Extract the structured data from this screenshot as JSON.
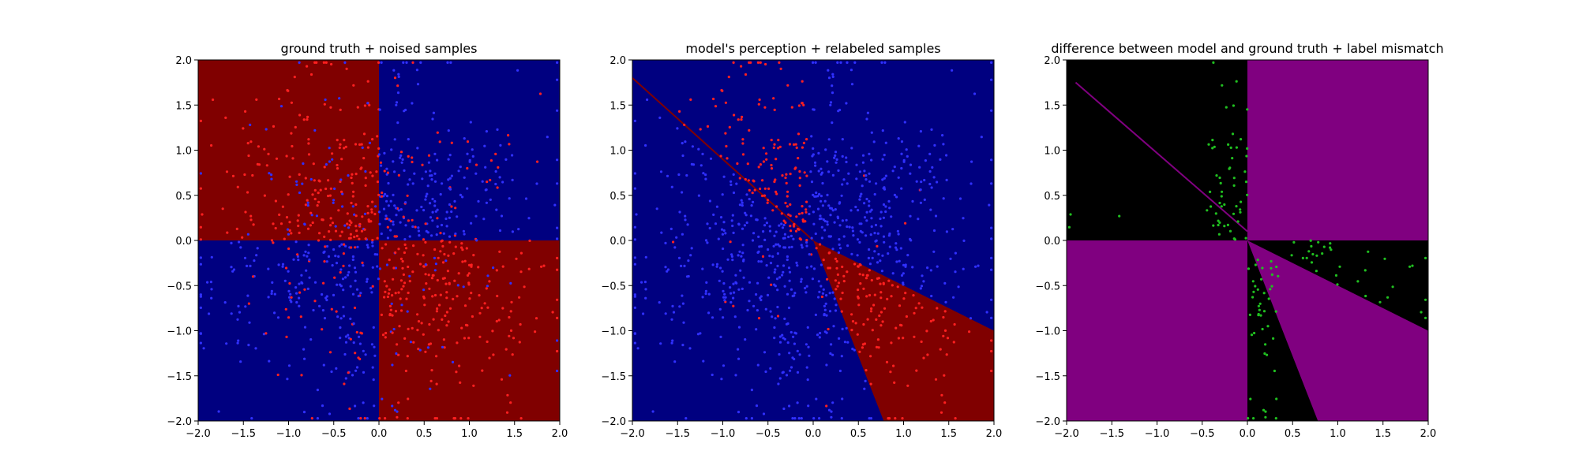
{
  "chart_data": [
    {
      "type": "heatmap",
      "title": "ground truth + noised samples",
      "xlim": [
        -2.0,
        2.0
      ],
      "ylim": [
        -2.0,
        2.0
      ],
      "xticks": [
        "−2.0",
        "−1.5",
        "−1.0",
        "−0.5",
        "0.0",
        "0.5",
        "1.0",
        "1.5",
        "2.0"
      ],
      "yticks": [
        "−2.0",
        "−1.5",
        "−1.0",
        "−0.5",
        "0.0",
        "0.5",
        "1.0",
        "1.5",
        "2.0"
      ],
      "background": "#000080",
      "regions": [
        {
          "color": "#800000",
          "polygon": [
            [
              -2,
              0
            ],
            [
              0,
              0
            ],
            [
              0,
              2
            ],
            [
              -2,
              2
            ]
          ]
        },
        {
          "color": "#800000",
          "polygon": [
            [
              0,
              -2
            ],
            [
              2,
              -2
            ],
            [
              2,
              0
            ],
            [
              0,
              0
            ]
          ]
        }
      ],
      "points": {
        "count": 1000,
        "rule": "checkerboard_noised",
        "colors": {
          "red": "#ff2020",
          "blue": "#3030ff"
        }
      }
    },
    {
      "type": "heatmap",
      "title": "model's perception + relabeled samples",
      "xlim": [
        -2.0,
        2.0
      ],
      "ylim": [
        -2.0,
        2.0
      ],
      "xticks": [
        "−2.0",
        "−1.5",
        "−1.0",
        "−0.5",
        "0.0",
        "0.5",
        "1.0",
        "1.5",
        "2.0"
      ],
      "yticks": [
        "−2.0",
        "−1.5",
        "−1.0",
        "−0.5",
        "0.0",
        "0.5",
        "1.0",
        "1.5",
        "2.0"
      ],
      "background": "#000080",
      "regions": [
        {
          "color": "#800000",
          "polygon": [
            [
              0,
              0
            ],
            [
              2,
              -1
            ],
            [
              2,
              -2
            ],
            [
              0.78,
              -2
            ]
          ]
        }
      ],
      "lines": [
        {
          "color": "#800000",
          "from": [
            -2,
            1.8
          ],
          "to": [
            0,
            0
          ]
        }
      ],
      "points": {
        "count": 1000,
        "rule": "model_relabeled",
        "colors": {
          "red": "#ff2020",
          "blue": "#3030ff"
        }
      }
    },
    {
      "type": "heatmap",
      "title": "difference between model and ground truth + label mismatch",
      "xlim": [
        -2.0,
        2.0
      ],
      "ylim": [
        -2.0,
        2.0
      ],
      "xticks": [
        "−2.0",
        "−1.5",
        "−1.0",
        "−0.5",
        "0.0",
        "0.5",
        "1.0",
        "1.5",
        "2.0"
      ],
      "yticks": [
        "−2.0",
        "−1.5",
        "−1.0",
        "−0.5",
        "0.0",
        "0.5",
        "1.0",
        "1.5",
        "2.0"
      ],
      "background": "#000000",
      "regions": [
        {
          "color": "#800080",
          "polygon": [
            [
              0,
              0
            ],
            [
              2,
              0
            ],
            [
              2,
              2
            ],
            [
              0,
              2
            ]
          ]
        },
        {
          "color": "#800080",
          "polygon": [
            [
              -2,
              -2
            ],
            [
              0,
              -2
            ],
            [
              0,
              0
            ],
            [
              -2,
              0
            ]
          ]
        },
        {
          "color": "#800080",
          "polygon": [
            [
              0,
              0
            ],
            [
              2,
              -1
            ],
            [
              2,
              -2
            ],
            [
              0.78,
              -2
            ]
          ]
        }
      ],
      "lines": [
        {
          "color": "#800080",
          "from": [
            -1.9,
            1.75
          ],
          "to": [
            0,
            0.1
          ]
        }
      ],
      "points": {
        "count": 1000,
        "rule": "mismatch",
        "colors": {
          "mismatch": "#20c020"
        }
      }
    }
  ]
}
